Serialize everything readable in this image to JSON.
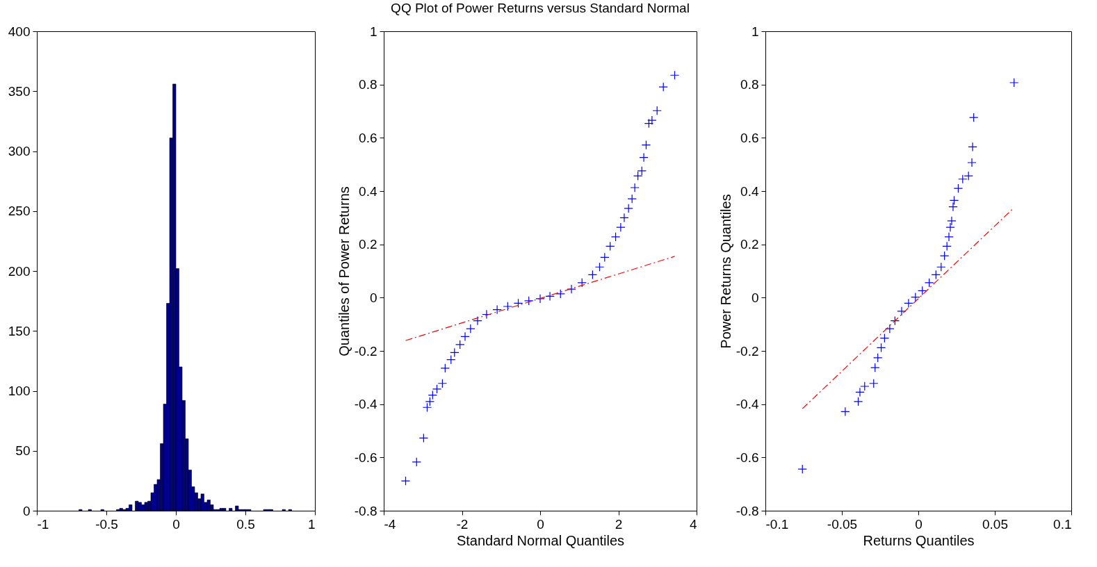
{
  "chart_data": [
    {
      "type": "histogram",
      "color": "#00008f",
      "xlim": [
        -1,
        1
      ],
      "xticks": [
        -1,
        -0.5,
        0,
        0.5,
        1
      ],
      "ylim": [
        0,
        400
      ],
      "yticks": [
        0,
        50,
        100,
        150,
        200,
        250,
        300,
        350,
        400
      ],
      "bins": [
        -0.6975,
        -0.675,
        -0.6525,
        -0.63,
        -0.6075,
        -0.585,
        -0.5625,
        -0.54,
        -0.5175,
        -0.495,
        -0.4725,
        -0.45,
        -0.4275,
        -0.405,
        -0.3825,
        -0.36,
        -0.3375,
        -0.315,
        -0.2925,
        -0.27,
        -0.2475,
        -0.225,
        -0.2025,
        -0.18,
        -0.1575,
        -0.135,
        -0.1125,
        -0.09,
        -0.0675,
        -0.045,
        -0.0225,
        0,
        0.0225,
        0.045,
        0.0675,
        0.09,
        0.1125,
        0.135,
        0.1575,
        0.18,
        0.2025,
        0.225,
        0.2475,
        0.27,
        0.2925,
        0.315,
        0.3375,
        0.36,
        0.3825,
        0.405,
        0.4275,
        0.45,
        0.4725,
        0.495,
        0.5175,
        0.54,
        0.5625,
        0.585,
        0.6075,
        0.63,
        0.6525,
        0.675,
        0.6975,
        0.72,
        0.7425,
        0.765,
        0.7875,
        0.81,
        0.8325
      ],
      "values": [
        1,
        0,
        0,
        1,
        0,
        0,
        0,
        1,
        0,
        0,
        0,
        0,
        1,
        2,
        1,
        2,
        5,
        0,
        8,
        7,
        5,
        7,
        8,
        15,
        22,
        26,
        56,
        89,
        173,
        311,
        356,
        202,
        120,
        92,
        60,
        34,
        20,
        15,
        10,
        14,
        7,
        9,
        5,
        1,
        1,
        2,
        2,
        0,
        2,
        0,
        4,
        1,
        1,
        1,
        1,
        0,
        0,
        0,
        0,
        1,
        1,
        1,
        0,
        0,
        0,
        1,
        0,
        1
      ]
    },
    {
      "type": "scatter",
      "title": "QQ Plot of Power Returns versus Standard Normal",
      "xlabel": "Standard Normal Quantiles",
      "ylabel": "Quantiles of Power Returns",
      "marker": "cross",
      "xlim": [
        -4,
        4
      ],
      "xticks": [
        -4,
        -2,
        0,
        2,
        4
      ],
      "ylim": [
        -0.8,
        1
      ],
      "yticks": [
        -0.8,
        -0.6,
        -0.4,
        -0.2,
        0,
        0.2,
        0.4,
        0.6,
        0.8,
        1
      ],
      "series": [
        {
          "type": "scatter",
          "color": "#0000ff",
          "x": [
            -3.44,
            -3.16,
            -2.98,
            -2.89,
            -2.82,
            -2.75,
            -2.64,
            -2.5,
            -2.43,
            -2.28,
            -2.19,
            -2.05,
            -1.92,
            -1.78,
            -1.6,
            -1.37,
            -1.1,
            -0.83,
            -0.56,
            -0.29,
            0,
            0.25,
            0.52,
            0.8,
            1.07,
            1.34,
            1.52,
            1.65,
            1.79,
            1.93,
            2.06,
            2.15,
            2.26,
            2.35,
            2.42,
            2.5,
            2.6,
            2.65,
            2.71,
            2.78,
            2.86,
            2.99,
            3.15,
            3.44
          ],
          "values": [
            -0.688,
            -0.617,
            -0.527,
            -0.412,
            -0.39,
            -0.366,
            -0.343,
            -0.322,
            -0.265,
            -0.233,
            -0.206,
            -0.176,
            -0.146,
            -0.117,
            -0.087,
            -0.063,
            -0.045,
            -0.033,
            -0.021,
            -0.012,
            -0.004,
            0.005,
            0.014,
            0.032,
            0.056,
            0.086,
            0.115,
            0.151,
            0.193,
            0.228,
            0.264,
            0.3,
            0.335,
            0.371,
            0.413,
            0.457,
            0.476,
            0.526,
            0.573,
            0.654,
            0.666,
            0.702,
            0.791,
            0.835
          ]
        },
        {
          "type": "line",
          "color": "#ff0000",
          "line_style": "dashed",
          "marker": "none",
          "x": [
            -3.44,
            3.44
          ],
          "values": [
            -0.161,
            0.155
          ]
        }
      ]
    },
    {
      "type": "scatter",
      "xlabel": "Returns Quantiles",
      "ylabel": "Power Returns Quantiles",
      "marker": "cross",
      "xlim": [
        -0.1,
        0.1
      ],
      "xticks": [
        -0.1,
        -0.05,
        0,
        0.05,
        0.1
      ],
      "ylim": [
        -0.8,
        1
      ],
      "yticks": [
        -0.8,
        -0.6,
        -0.4,
        -0.2,
        0,
        0.2,
        0.4,
        0.6,
        0.8,
        1
      ],
      "series": [
        {
          "type": "scatter",
          "color": "#0000ff",
          "x": [
            -0.0758,
            -0.0478,
            -0.0393,
            -0.0382,
            -0.0351,
            -0.0292,
            -0.0283,
            -0.0265,
            -0.0243,
            -0.0221,
            -0.0187,
            -0.0153,
            -0.0109,
            -0.0064,
            -0.0019,
            0.0026,
            0.0071,
            0.0115,
            0.0149,
            0.0171,
            0.0187,
            0.02,
            0.0209,
            0.0218,
            0.0227,
            0.0234,
            0.0261,
            0.029,
            0.0328,
            0.035,
            0.0355,
            0.0362,
            0.0626
          ],
          "values": [
            -0.644,
            -0.428,
            -0.39,
            -0.355,
            -0.333,
            -0.322,
            -0.263,
            -0.226,
            -0.188,
            -0.152,
            -0.117,
            -0.087,
            -0.051,
            -0.021,
            0.002,
            0.026,
            0.056,
            0.086,
            0.115,
            0.157,
            0.193,
            0.228,
            0.264,
            0.288,
            0.341,
            0.365,
            0.41,
            0.445,
            0.457,
            0.507,
            0.566,
            0.676,
            0.807
          ]
        },
        {
          "type": "line",
          "color": "#ff0000",
          "line_style": "dashed",
          "marker": "none",
          "x": [
            -0.0758,
            0.0626
          ],
          "values": [
            -0.417,
            0.338
          ]
        }
      ]
    }
  ]
}
